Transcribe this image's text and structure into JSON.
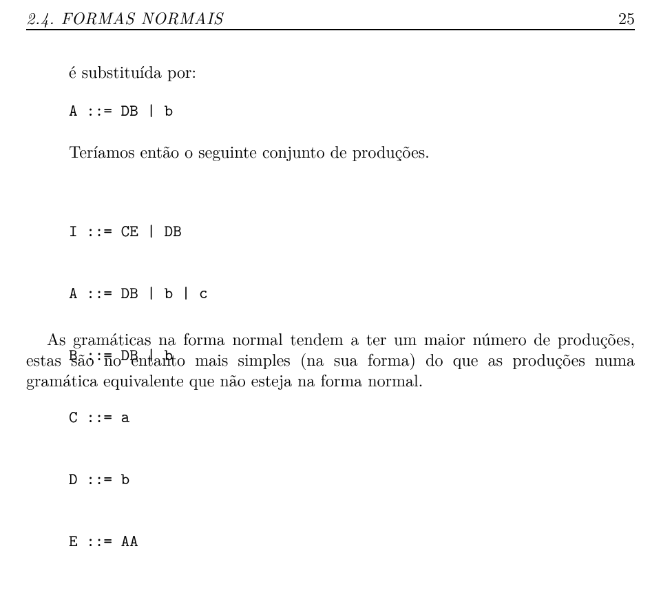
{
  "header": {
    "section": "2.4.  FORMAS NORMAIS",
    "page_number": "25"
  },
  "intro": "é substituída por:",
  "code1": "A ::= DB | b",
  "para2": "Teríamos então o seguinte conjunto de produções.",
  "code2_lines": [
    "I ::= CE | DB",
    "A ::= DB | b | c",
    "B ::= DB | b",
    "C ::= a",
    "D ::= b",
    "E ::= AA"
  ],
  "para3": "As gramáticas na forma normal tendem a ter um maior número de produções, estas são no entanto mais simples (na sua forma) do que as produções numa gramática equivalente que não esteja na forma normal."
}
